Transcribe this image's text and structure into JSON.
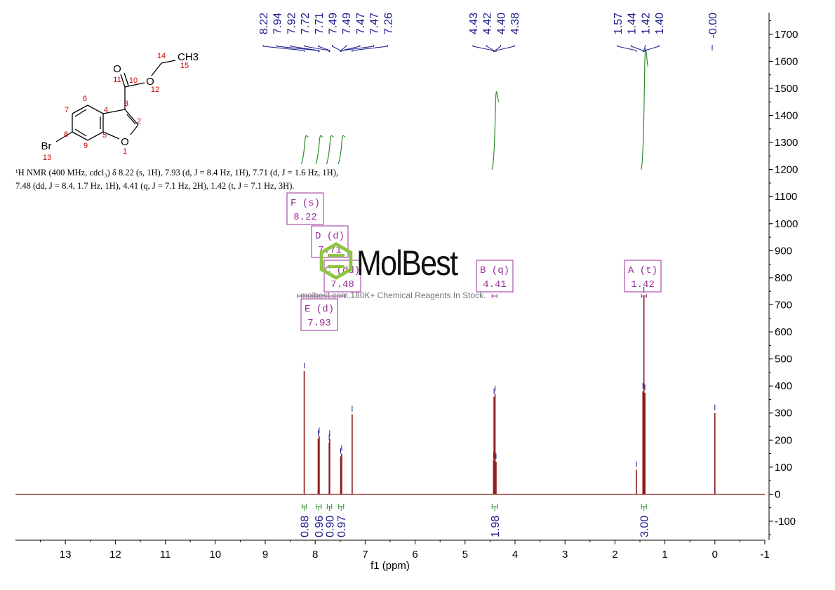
{
  "chart_data": {
    "type": "line",
    "xlabel": "f1 (ppm)",
    "ylabel": "",
    "xlim": [
      14.0,
      -1.0
    ],
    "ylim": [
      -170,
      1780
    ],
    "x_ticks": [
      "13",
      "12",
      "11",
      "10",
      "9",
      "8",
      "7",
      "6",
      "5",
      "4",
      "3",
      "2",
      "1",
      "0",
      "-1"
    ],
    "y_ticks": [
      "1700",
      "1600",
      "1500",
      "1400",
      "1300",
      "1200",
      "1100",
      "1000",
      "900",
      "800",
      "700",
      "600",
      "500",
      "400",
      "300",
      "200",
      "100",
      "0",
      "-100"
    ],
    "peaks": [
      {
        "ppm": 8.22,
        "height": 455
      },
      {
        "ppm": 7.94,
        "height": 205
      },
      {
        "ppm": 7.92,
        "height": 215
      },
      {
        "ppm": 7.72,
        "height": 190
      },
      {
        "ppm": 7.71,
        "height": 205
      },
      {
        "ppm": 7.49,
        "height": 140
      },
      {
        "ppm": 7.47,
        "height": 150
      },
      {
        "ppm": 7.26,
        "height": 295
      },
      {
        "ppm": 4.43,
        "height": 125
      },
      {
        "ppm": 4.42,
        "height": 360
      },
      {
        "ppm": 4.4,
        "height": 370
      },
      {
        "ppm": 4.38,
        "height": 120
      },
      {
        "ppm": 1.57,
        "height": 90
      },
      {
        "ppm": 1.44,
        "height": 380
      },
      {
        "ppm": 1.42,
        "height": 735
      },
      {
        "ppm": 1.4,
        "height": 375
      },
      {
        "ppm": 0.0,
        "height": 300
      }
    ],
    "peak_labels": [
      "8.22",
      "7.94",
      "7.92",
      "7.72",
      "7.71",
      "7.49",
      "7.49",
      "7.47",
      "7.47",
      "7.26",
      "4.43",
      "4.42",
      "4.40",
      "4.38",
      "1.57",
      "1.44",
      "1.42",
      "1.40",
      "-0.00"
    ],
    "integrals": [
      {
        "from": 8.26,
        "to": 8.18,
        "value": "0.88",
        "curve_bottom": 1220,
        "curve_top": 1320
      },
      {
        "from": 7.98,
        "to": 7.88,
        "value": "0.96",
        "curve_bottom": 1220,
        "curve_top": 1320
      },
      {
        "from": 7.76,
        "to": 7.67,
        "value": "0.90",
        "curve_bottom": 1220,
        "curve_top": 1320
      },
      {
        "from": 7.53,
        "to": 7.43,
        "value": "0.97",
        "curve_bottom": 1220,
        "curve_top": 1320
      },
      {
        "from": 4.46,
        "to": 4.35,
        "value": "1.98",
        "curve_bottom": 1200,
        "curve_top": 1450
      },
      {
        "from": 1.47,
        "to": 1.37,
        "value": "3.00",
        "curve_bottom": 1200,
        "curve_top": 1580
      }
    ],
    "multiplets": [
      {
        "label": "F (s)",
        "value": "8.22",
        "ppm": 8.22
      },
      {
        "label": "D (d)",
        "value": "7.71",
        "ppm": 7.71
      },
      {
        "label": "C (dd)",
        "value": "7.48",
        "ppm": 7.48
      },
      {
        "label": "E (d)",
        "value": "7.93",
        "ppm": 7.93
      },
      {
        "label": "B (q)",
        "value": "4.41",
        "ppm": 4.41
      },
      {
        "label": "A (t)",
        "value": "1.42",
        "ppm": 1.42
      }
    ]
  },
  "caption": {
    "line1": "¹H NMR (400 MHz, cdcl₃) δ 8.22 (s, 1H), 7.93 (d, J = 8.4 Hz, 1H), 7.71 (d, J = 1.6 Hz, 1H),",
    "line2": "7.48 (dd, J = 8.4, 1.7 Hz, 1H), 4.41 (q, J = 7.1 Hz, 2H), 1.42 (t, J = 7.1 Hz, 3H)."
  },
  "structure": {
    "atoms": {
      "ch3": "CH3",
      "o_carbonyl": "O",
      "o_ester": "O",
      "o_ring": "O",
      "br": "Br"
    },
    "numbers": [
      "1",
      "2",
      "3",
      "4",
      "5",
      "6",
      "7",
      "8",
      "9",
      "10",
      "11",
      "12",
      "13",
      "14",
      "15"
    ]
  },
  "watermark": {
    "brand": "MolBest",
    "url": "molbest.com,180K+ Chemical Reagents In Stock."
  },
  "colors": {
    "spectrum": "#8b1a1a",
    "peak_labels": "#1a1a8c",
    "integrals": "#2e8b2e",
    "multiplet_boxes": "#9b2d9b",
    "atom_numbers": "#cc0000",
    "watermark_green": "#8dc63f"
  }
}
